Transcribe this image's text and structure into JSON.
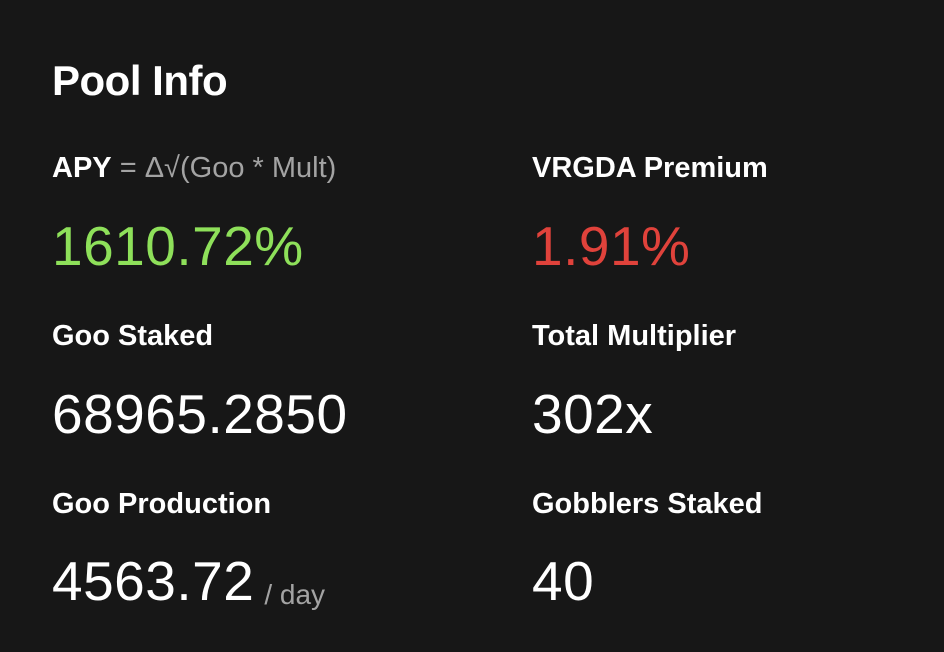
{
  "pool_info": {
    "title": "Pool Info",
    "apy": {
      "label": "APY",
      "formula": " = Δ√(Goo * Mult)",
      "value": "1610.72%",
      "color": "#8ee05a"
    },
    "vrgda_premium": {
      "label": "VRGDA Premium",
      "value": "1.91%",
      "color": "#e0423b"
    },
    "goo_staked": {
      "label": "Goo Staked",
      "value": "68965.2850"
    },
    "total_multiplier": {
      "label": "Total Multiplier",
      "value": "302x"
    },
    "goo_production": {
      "label": "Goo Production",
      "value": "4563.72",
      "unit": "/ day"
    },
    "gobblers_staked": {
      "label": "Gobblers Staked",
      "value": "40"
    }
  }
}
